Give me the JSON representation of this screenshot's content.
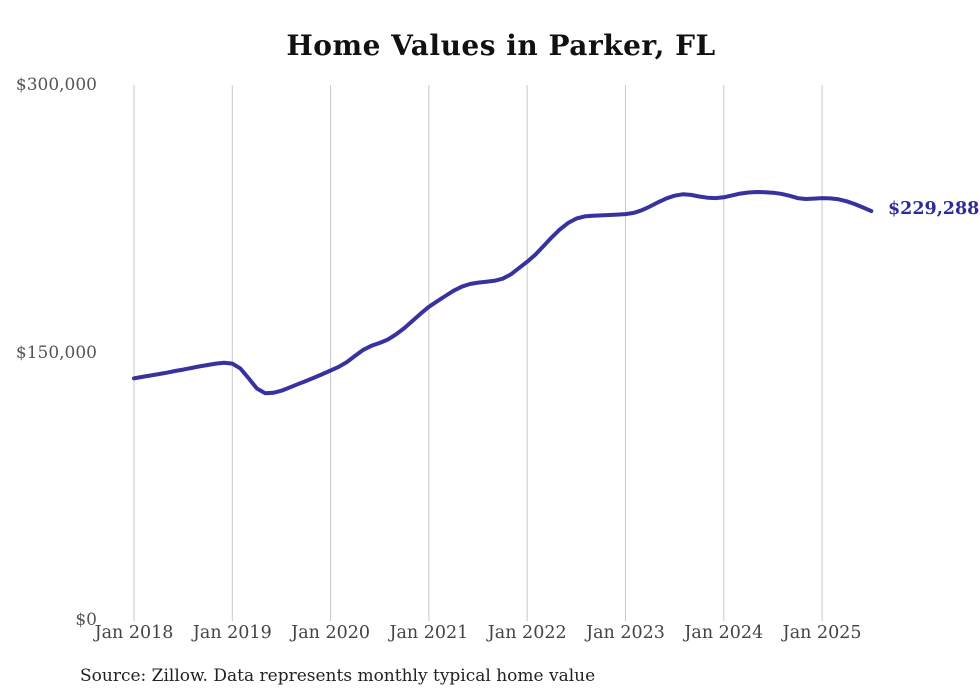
{
  "title": "Home Values in Parker, FL",
  "end_label": "$229,288",
  "source_note": "Source: Zillow. Data represents monthly typical home value",
  "colors": {
    "line": "#3732a0",
    "end_label": "#2d2a9b",
    "grid": "#c9c9c9",
    "axis_text": "#555555",
    "title_text": "#111111"
  },
  "chart_data": {
    "type": "line",
    "title": "Home Values in Parker, FL",
    "xlabel": "",
    "ylabel": "",
    "ylim": [
      0,
      300000
    ],
    "grid": "vertical-only",
    "legend_position": "none",
    "x_start": "2018-01",
    "x_end": "2025-07",
    "interval": "monthly",
    "y_ticks": [
      {
        "label": "$0",
        "value": 0
      },
      {
        "label": "$150,000",
        "value": 150000
      },
      {
        "label": "$300,000",
        "value": 300000
      }
    ],
    "x_ticks": [
      {
        "label": "Jan 2018",
        "month_index": 0
      },
      {
        "label": "Jan 2019",
        "month_index": 12
      },
      {
        "label": "Jan 2020",
        "month_index": 24
      },
      {
        "label": "Jan 2021",
        "month_index": 36
      },
      {
        "label": "Jan 2022",
        "month_index": 48
      },
      {
        "label": "Jan 2023",
        "month_index": 60
      },
      {
        "label": "Jan 2024",
        "month_index": 72
      },
      {
        "label": "Jan 2025",
        "month_index": 84
      }
    ],
    "series": [
      {
        "name": "Monthly typical home value",
        "final_value": 229288,
        "values": [
          135500,
          136300,
          137100,
          137900,
          138700,
          139600,
          140400,
          141300,
          142200,
          143000,
          143800,
          144200,
          143800,
          141000,
          135500,
          129800,
          127200,
          127400,
          128600,
          130400,
          132200,
          134000,
          135900,
          137900,
          139900,
          142000,
          144700,
          148200,
          151500,
          153800,
          155400,
          157300,
          160200,
          163700,
          167700,
          171800,
          175600,
          178700,
          181700,
          184600,
          186900,
          188400,
          189200,
          189700,
          190200,
          191400,
          193800,
          197300,
          200900,
          204900,
          209700,
          214600,
          219100,
          222700,
          225100,
          226300,
          226700,
          226900,
          227100,
          227300,
          227600,
          228300,
          229800,
          231900,
          234300,
          236400,
          237900,
          238700,
          238400,
          237500,
          236800,
          236600,
          237000,
          238100,
          239100,
          239700,
          240000,
          239900,
          239600,
          239000,
          237900,
          236600,
          236100,
          236300,
          236600,
          236400,
          235900,
          234800,
          233200,
          231300,
          229288
        ]
      }
    ]
  }
}
